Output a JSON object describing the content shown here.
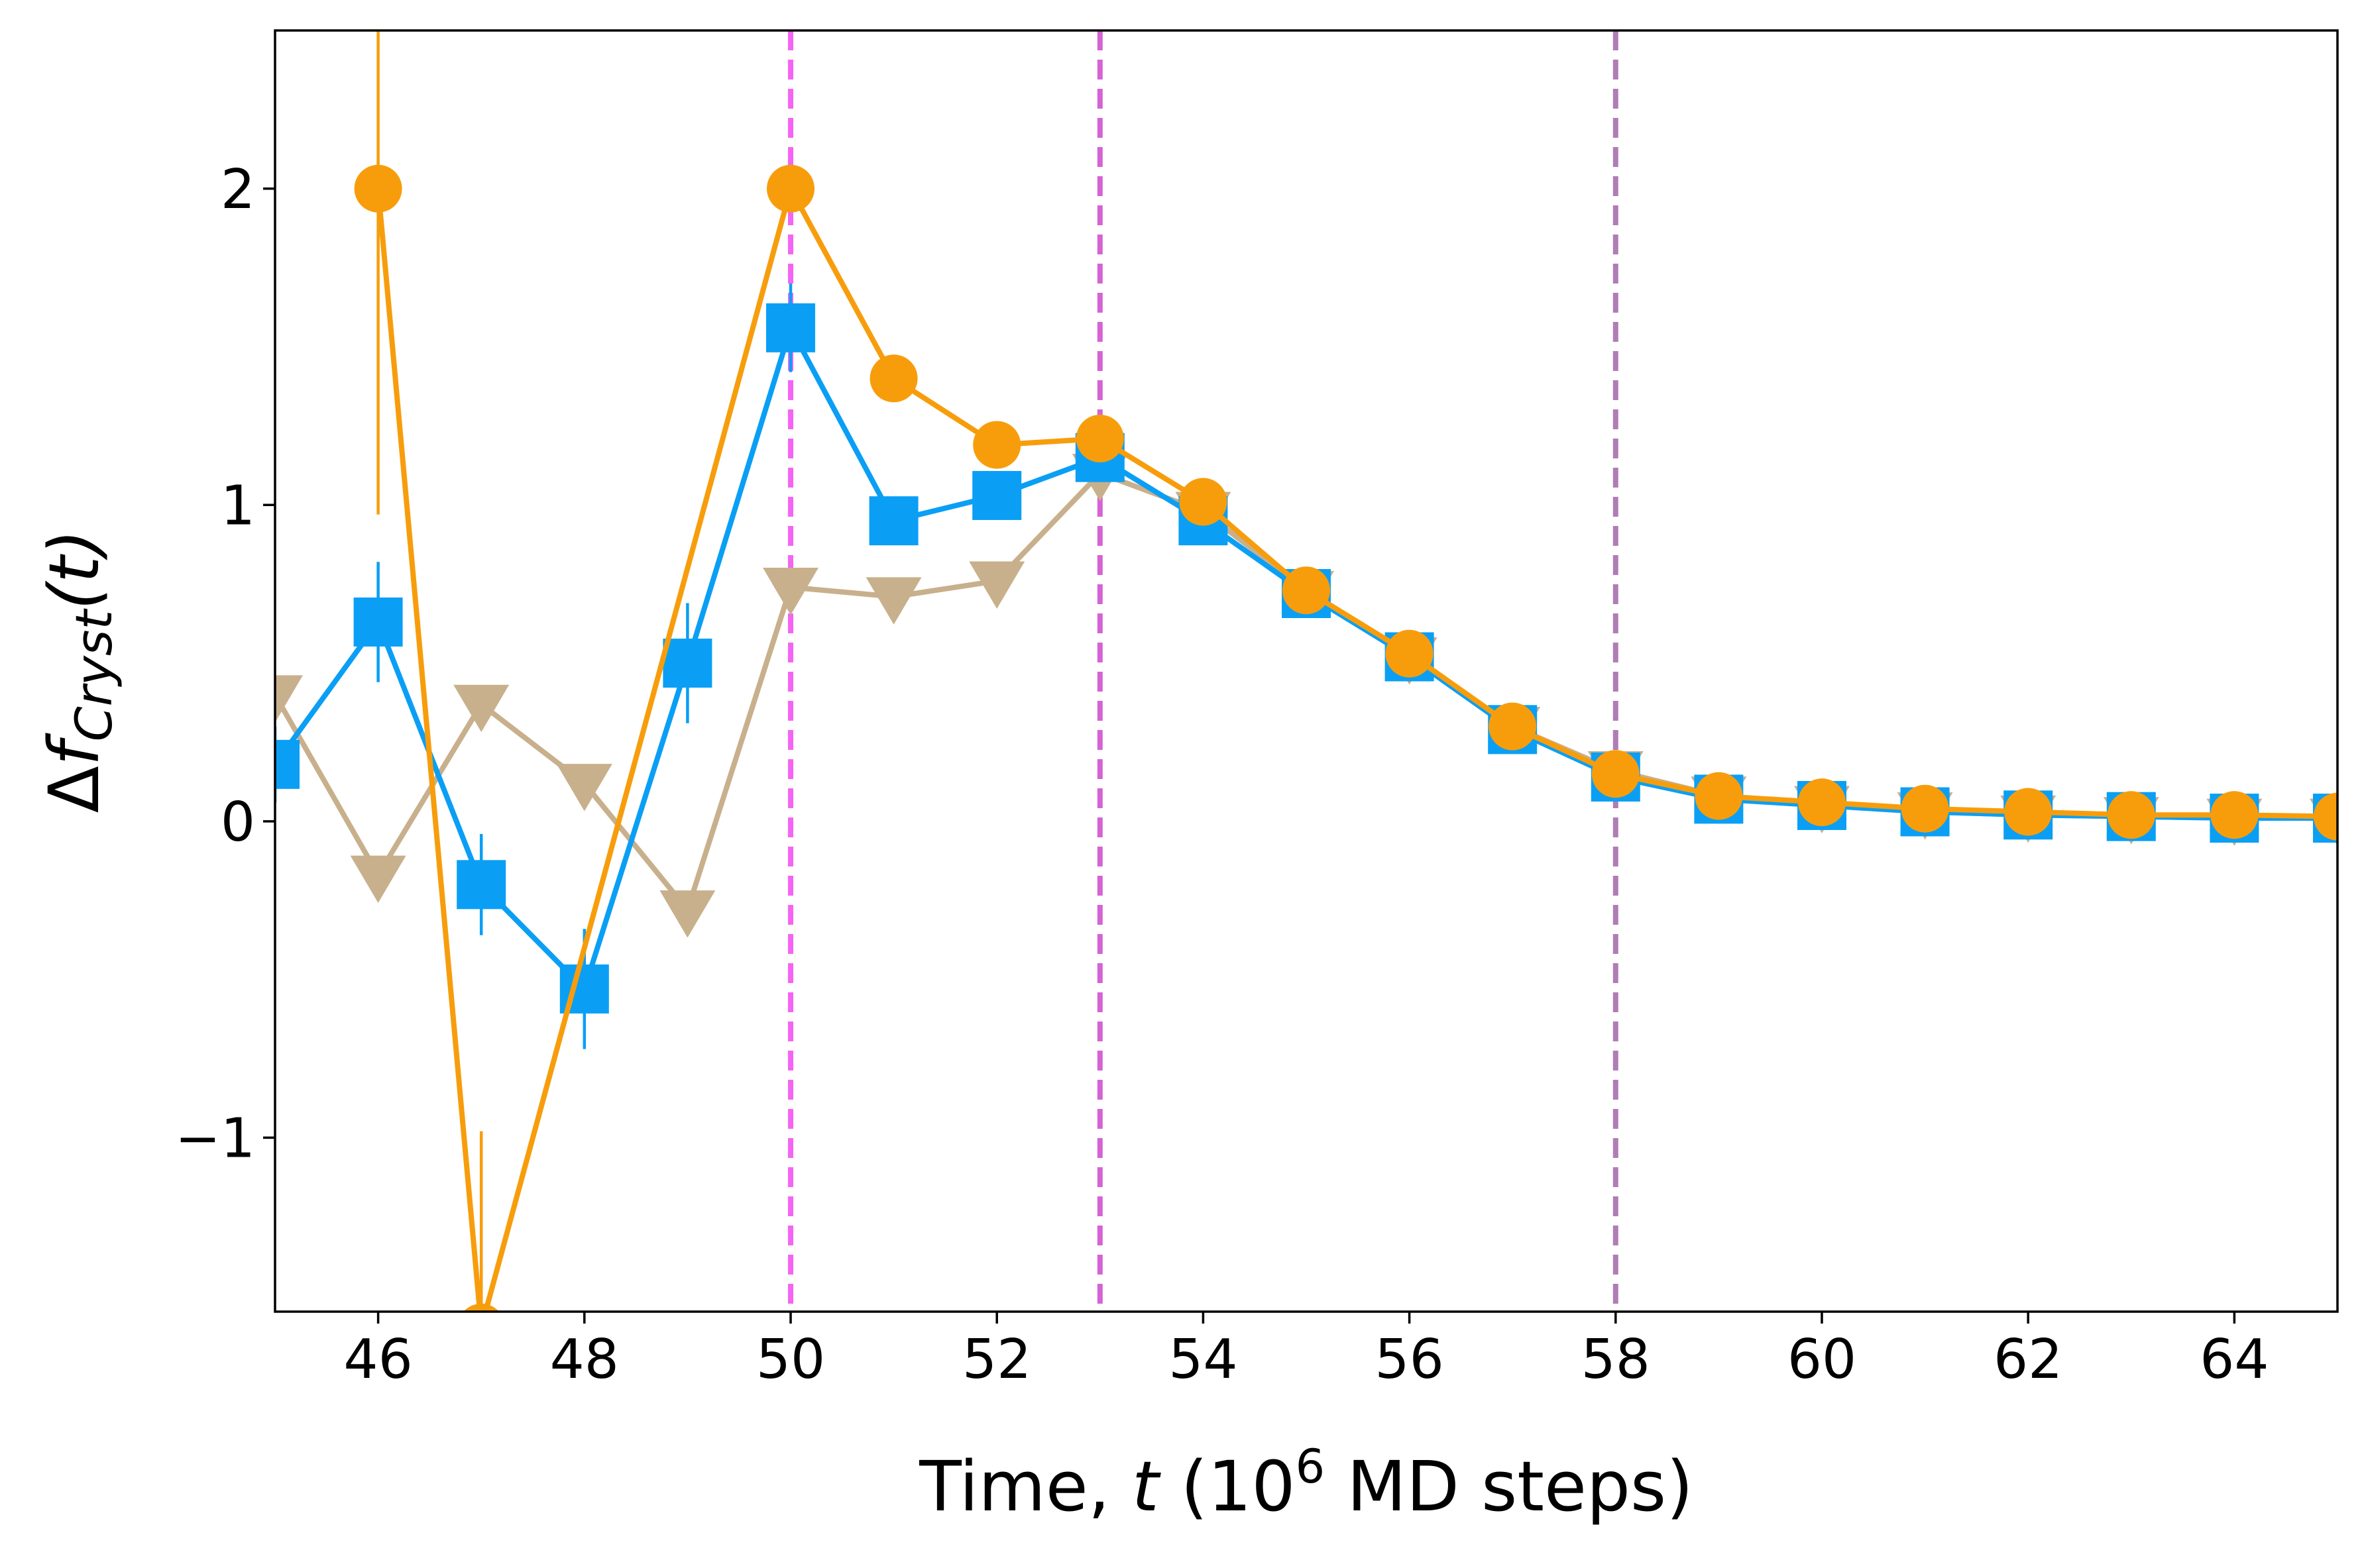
{
  "chart_data": {
    "type": "line",
    "xlabel": "Time, t (10^6 MD steps)",
    "xlabel_parts": {
      "pre": "Time, ",
      "var": "t",
      "mid": " (10",
      "sup": "6",
      "post": " MD steps)"
    },
    "ylabel": "Δf_Cryst(t)",
    "ylabel_parts": {
      "delta": "Δ",
      "f": "f",
      "sub": "Cryst",
      "arg": "(t)"
    },
    "xlim": [
      45,
      65
    ],
    "ylim": [
      -1.55,
      2.5
    ],
    "xticks": [
      46,
      48,
      50,
      52,
      54,
      56,
      58,
      60,
      62,
      64
    ],
    "xtick_labels": [
      "46",
      "48",
      "50",
      "52",
      "54",
      "56",
      "58",
      "60",
      "62",
      "64"
    ],
    "yticks": [
      -1,
      0,
      1,
      2
    ],
    "ytick_labels": [
      "−1",
      "0",
      "1",
      "2"
    ],
    "vlines": [
      {
        "x": 50,
        "color": "#f564f5"
      },
      {
        "x": 53,
        "color": "#d563d5"
      },
      {
        "x": 58,
        "color": "#b07db5"
      }
    ],
    "series": [
      {
        "marker": "triangle-down",
        "color": "#c8b08c",
        "x": [
          45,
          46,
          47,
          48,
          49,
          50,
          51,
          52,
          53,
          54,
          55,
          56,
          57,
          58,
          59,
          60,
          61,
          62,
          63,
          64,
          65
        ],
        "y": [
          0.4,
          -0.17,
          0.37,
          0.12,
          -0.28,
          0.74,
          0.71,
          0.76,
          1.1,
          0.98,
          0.73,
          0.52,
          0.3,
          0.16,
          0.08,
          0.05,
          0.03,
          0.02,
          0.015,
          0.01,
          0.01
        ],
        "err": []
      },
      {
        "marker": "square",
        "color": "#0a9ff5",
        "x": [
          45,
          46,
          47,
          48,
          49,
          50,
          51,
          52,
          53,
          54,
          55,
          56,
          57,
          58,
          59,
          60,
          61,
          62,
          63,
          64,
          65
        ],
        "y": [
          0.18,
          0.63,
          -0.2,
          -0.53,
          0.5,
          1.56,
          0.95,
          1.03,
          1.15,
          0.95,
          0.72,
          0.52,
          0.29,
          0.14,
          0.07,
          0.05,
          0.03,
          0.02,
          0.015,
          0.01,
          0.01
        ],
        "err": [
          0.12,
          0.19,
          0.16,
          0.19,
          0.19,
          0.14,
          0.0,
          0.0,
          0.07,
          0.0,
          0.0,
          0.0,
          0.0,
          0.0,
          0.0,
          0.0,
          0.0,
          0.0,
          0.0,
          0.0,
          0.0
        ]
      },
      {
        "marker": "circle",
        "color": "#f79d0c",
        "x": [
          46,
          47,
          50,
          51,
          52,
          53,
          54,
          55,
          56,
          57,
          58,
          59,
          60,
          61,
          62,
          63,
          64,
          65
        ],
        "y": [
          2.0,
          -1.6,
          2.0,
          1.4,
          1.19,
          1.21,
          1.01,
          0.73,
          0.53,
          0.3,
          0.15,
          0.08,
          0.06,
          0.04,
          0.03,
          0.02,
          0.02,
          0.015
        ],
        "err": [
          1.03,
          0.62,
          0.0,
          0.0,
          0.0,
          0.0,
          0.0,
          0.0,
          0.0,
          0.0,
          0.0,
          0.0,
          0.0,
          0.0,
          0.0,
          0.0,
          0.0,
          0.0
        ]
      }
    ]
  }
}
